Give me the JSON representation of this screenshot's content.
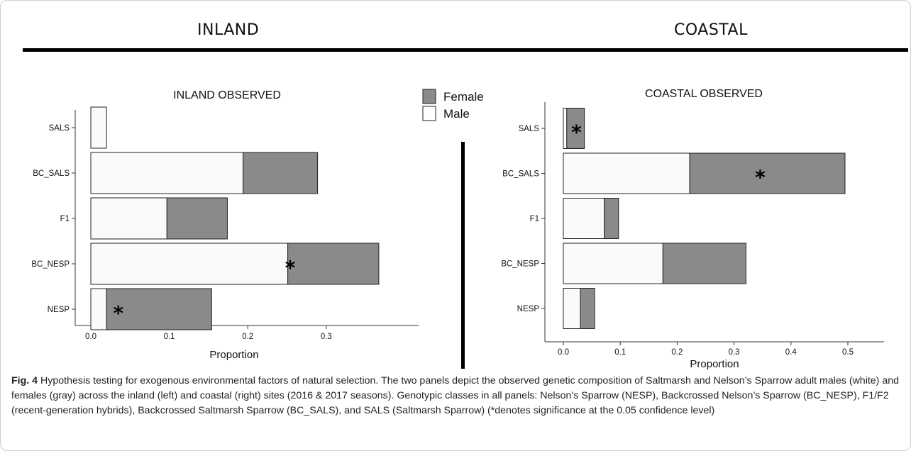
{
  "header": {
    "left_title": "INLAND",
    "right_title": "COASTAL"
  },
  "legend": {
    "items": [
      {
        "label": "Female",
        "color": "#8a8a8a"
      },
      {
        "label": "Male",
        "color": "#ffffff"
      }
    ]
  },
  "caption": {
    "label": "Fig. 4",
    "text": " Hypothesis testing for exogenous environmental factors of natural selection. The two panels depict the observed genetic composition of Saltmarsh and Nelson’s Sparrow adult males (white) and females (gray) across the inland (left) and coastal (right) sites (2016 & 2017 seasons). Genotypic classes in all panels: Nelson’s Sparrow (NESP), Backcrossed Nelson’s Sparrow (BC_NESP), F1/F2 (recent-generation hybrids), Backcrossed Saltmarsh Sparrow (BC_SALS), and SALS (Saltmarsh Sparrow) (*denotes significance at the 0.05 confidence level)"
  },
  "colors": {
    "female": "#8a8a8a",
    "male": "#fafafa",
    "stroke": "#222222",
    "axis": "#333333"
  },
  "chart_data": [
    {
      "type": "bar",
      "orientation": "horizontal",
      "stacked": true,
      "title": "INLAND OBSERVED",
      "xlabel": "Proportion",
      "ylabel": "",
      "categories": [
        "SALS",
        "BC_SALS",
        "F1",
        "BC_NESP",
        "NESP"
      ],
      "series": [
        {
          "name": "Male",
          "values": [
            0.02,
            0.194,
            0.097,
            0.251,
            0.02
          ]
        },
        {
          "name": "Female",
          "values": [
            0.0,
            0.095,
            0.077,
            0.116,
            0.134
          ]
        }
      ],
      "significance": [
        {
          "category": "BC_NESP",
          "x": 0.254,
          "label": "*"
        },
        {
          "category": "NESP",
          "x": 0.035,
          "label": "*"
        }
      ],
      "xlim": [
        -0.02,
        0.4
      ],
      "xticks": [
        0.0,
        0.1,
        0.2,
        0.3
      ],
      "xtick_labels": [
        "0.0",
        "0.1",
        "0.2",
        "0.3"
      ],
      "grid": false,
      "legend": "top-right"
    },
    {
      "type": "bar",
      "orientation": "horizontal",
      "stacked": true,
      "title": "COASTAL OBSERVED",
      "xlabel": "Proportion",
      "ylabel": "",
      "categories": [
        "SALS",
        "BC_SALS",
        "F1",
        "BC_NESP",
        "NESP"
      ],
      "series": [
        {
          "name": "Male",
          "values": [
            0.006,
            0.222,
            0.072,
            0.175,
            0.03
          ]
        },
        {
          "name": "Female",
          "values": [
            0.031,
            0.273,
            0.025,
            0.146,
            0.025
          ]
        }
      ],
      "significance": [
        {
          "category": "SALS",
          "x": 0.023,
          "label": "*"
        },
        {
          "category": "BC_SALS",
          "x": 0.346,
          "label": "*"
        }
      ],
      "xlim": [
        -0.02,
        0.52
      ],
      "xticks": [
        0.0,
        0.1,
        0.2,
        0.3,
        0.4,
        0.5
      ],
      "xtick_labels": [
        "0.0",
        "0.1",
        "0.2",
        "0.3",
        "0.4",
        "0.5"
      ],
      "grid": false,
      "legend": "none"
    }
  ]
}
